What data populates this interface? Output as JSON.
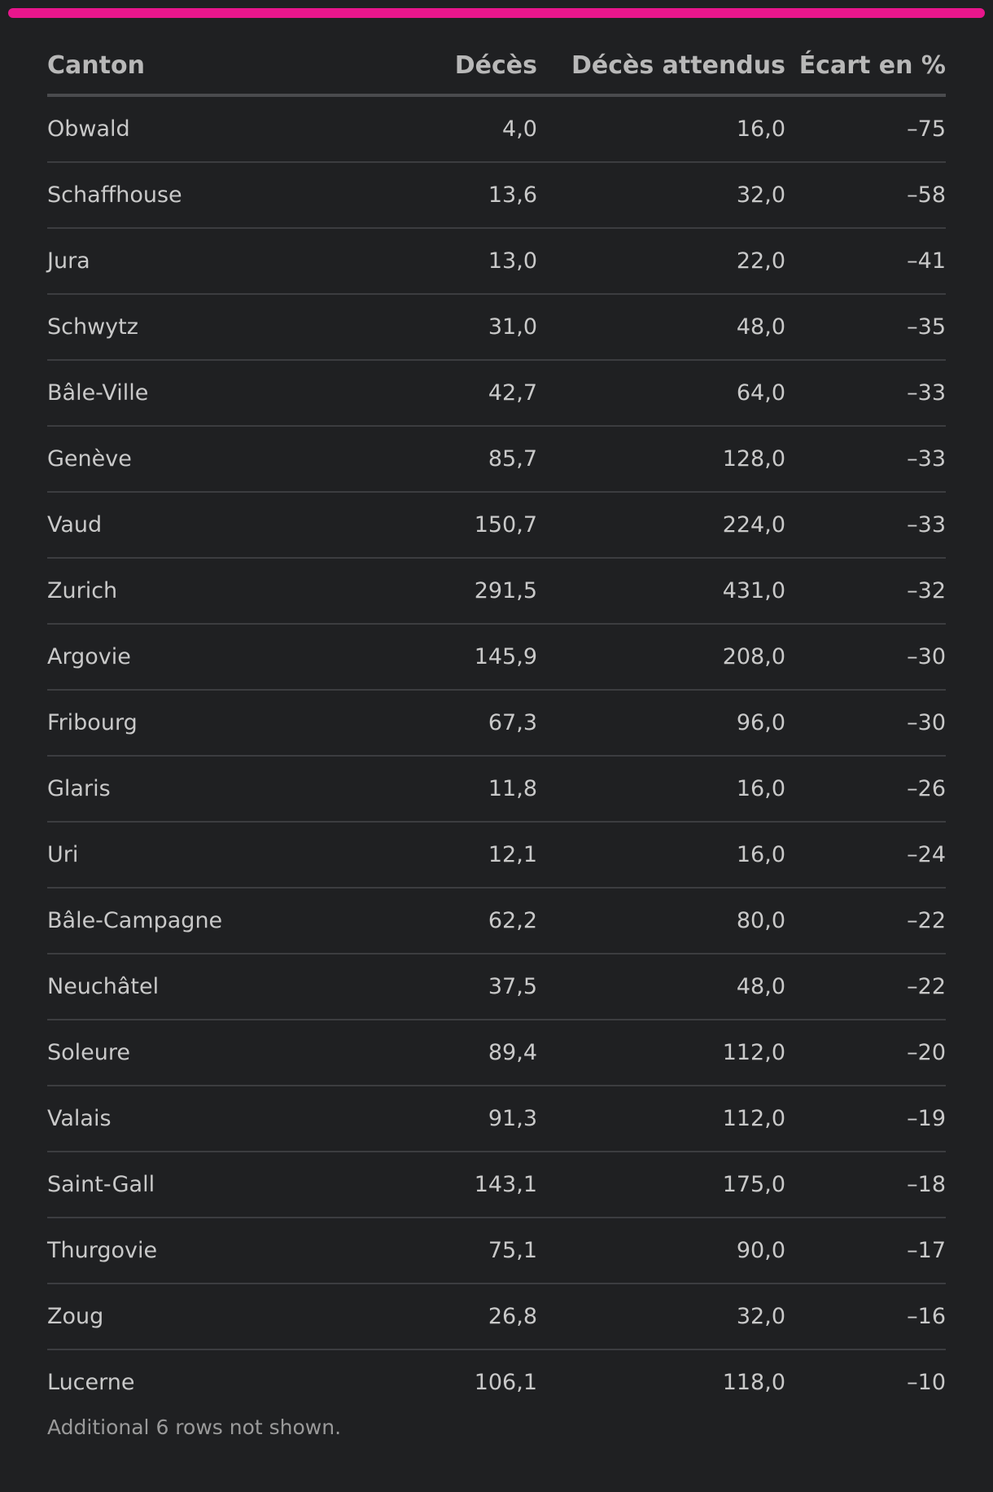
{
  "accent_color": "#e8168c",
  "table": {
    "headers": {
      "canton": "Canton",
      "deces": "Décès",
      "deces_attendus": "Décès attendus",
      "ecart": "Écart en %"
    },
    "footnote": "Additional 6 rows not shown."
  },
  "chart_data": {
    "type": "table",
    "columns": [
      "Canton",
      "Décès",
      "Décès attendus",
      "Écart en %"
    ],
    "rows": [
      [
        "Obwald",
        "4,0",
        "16,0",
        "–75"
      ],
      [
        "Schaffhouse",
        "13,6",
        "32,0",
        "–58"
      ],
      [
        "Jura",
        "13,0",
        "22,0",
        "–41"
      ],
      [
        "Schwytz",
        "31,0",
        "48,0",
        "–35"
      ],
      [
        "Bâle-Ville",
        "42,7",
        "64,0",
        "–33"
      ],
      [
        "Genève",
        "85,7",
        "128,0",
        "–33"
      ],
      [
        "Vaud",
        "150,7",
        "224,0",
        "–33"
      ],
      [
        "Zurich",
        "291,5",
        "431,0",
        "–32"
      ],
      [
        "Argovie",
        "145,9",
        "208,0",
        "–30"
      ],
      [
        "Fribourg",
        "67,3",
        "96,0",
        "–30"
      ],
      [
        "Glaris",
        "11,8",
        "16,0",
        "–26"
      ],
      [
        "Uri",
        "12,1",
        "16,0",
        "–24"
      ],
      [
        "Bâle-Campagne",
        "62,2",
        "80,0",
        "–22"
      ],
      [
        "Neuchâtel",
        "37,5",
        "48,0",
        "–22"
      ],
      [
        "Soleure",
        "89,4",
        "112,0",
        "–20"
      ],
      [
        "Valais",
        "91,3",
        "112,0",
        "–19"
      ],
      [
        "Saint-Gall",
        "143,1",
        "175,0",
        "–18"
      ],
      [
        "Thurgovie",
        "75,1",
        "90,0",
        "–17"
      ],
      [
        "Zoug",
        "26,8",
        "32,0",
        "–16"
      ],
      [
        "Lucerne",
        "106,1",
        "118,0",
        "–10"
      ]
    ]
  }
}
